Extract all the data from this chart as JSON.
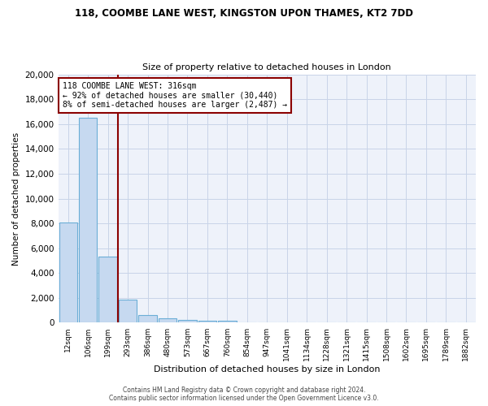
{
  "title1": "118, COOMBE LANE WEST, KINGSTON UPON THAMES, KT2 7DD",
  "title2": "Size of property relative to detached houses in London",
  "xlabel": "Distribution of detached houses by size in London",
  "ylabel": "Number of detached properties",
  "bar_color": "#c6d9f0",
  "bar_edge_color": "#6baed6",
  "grid_color": "#c8d4e8",
  "background_color": "#eef2fa",
  "vline_color": "#8b0000",
  "annotation_box_color": "#8b0000",
  "categories": [
    "12sqm",
    "106sqm",
    "199sqm",
    "293sqm",
    "386sqm",
    "480sqm",
    "573sqm",
    "667sqm",
    "760sqm",
    "854sqm",
    "947sqm",
    "1041sqm",
    "1134sqm",
    "1228sqm",
    "1321sqm",
    "1415sqm",
    "1508sqm",
    "1602sqm",
    "1695sqm",
    "1789sqm",
    "1882sqm"
  ],
  "values": [
    8100,
    16500,
    5300,
    1850,
    650,
    350,
    250,
    180,
    150,
    0,
    0,
    0,
    0,
    0,
    0,
    0,
    0,
    0,
    0,
    0,
    0
  ],
  "ylim": [
    0,
    20000
  ],
  "yticks": [
    0,
    2000,
    4000,
    6000,
    8000,
    10000,
    12000,
    14000,
    16000,
    18000,
    20000
  ],
  "annotation_line1": "118 COOMBE LANE WEST: 316sqm",
  "annotation_line2": "← 92% of detached houses are smaller (30,440)",
  "annotation_line3": "8% of semi-detached houses are larger (2,487) →",
  "footer1": "Contains HM Land Registry data © Crown copyright and database right 2024.",
  "footer2": "Contains public sector information licensed under the Open Government Licence v3.0.",
  "vline_x_idx": 2.5
}
